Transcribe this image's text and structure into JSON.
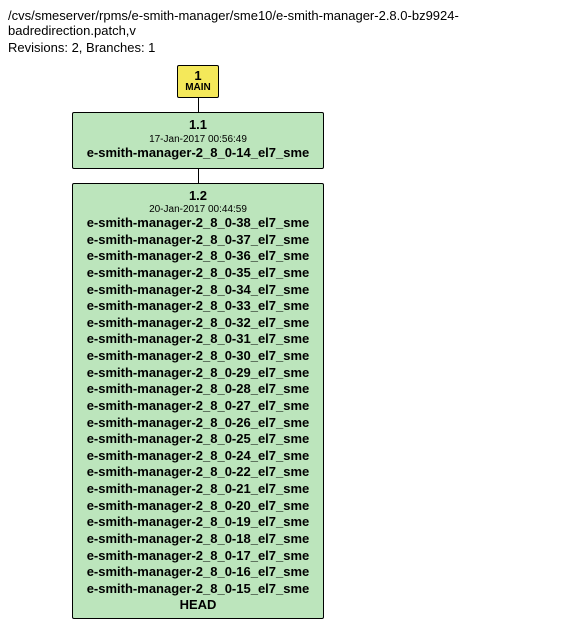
{
  "header": {
    "path": "/cvs/smeserver/rpms/e-smith-manager/sme10/e-smith-manager-2.8.0-bz9924-badredirection.patch,v",
    "revisions_label": "Revisions: 2, Branches: 1"
  },
  "main_node": {
    "number": "1",
    "branch": "MAIN",
    "bg_color": "#f4e85a"
  },
  "rev1": {
    "version": "1.1",
    "date": "17-Jan-2017 00:56:49",
    "tags": [
      "e-smith-manager-2_8_0-14_el7_sme"
    ],
    "bg_color": "#bce5bc"
  },
  "rev2": {
    "version": "1.2",
    "date": "20-Jan-2017 00:44:59",
    "tags": [
      "e-smith-manager-2_8_0-38_el7_sme",
      "e-smith-manager-2_8_0-37_el7_sme",
      "e-smith-manager-2_8_0-36_el7_sme",
      "e-smith-manager-2_8_0-35_el7_sme",
      "e-smith-manager-2_8_0-34_el7_sme",
      "e-smith-manager-2_8_0-33_el7_sme",
      "e-smith-manager-2_8_0-32_el7_sme",
      "e-smith-manager-2_8_0-31_el7_sme",
      "e-smith-manager-2_8_0-30_el7_sme",
      "e-smith-manager-2_8_0-29_el7_sme",
      "e-smith-manager-2_8_0-28_el7_sme",
      "e-smith-manager-2_8_0-27_el7_sme",
      "e-smith-manager-2_8_0-26_el7_sme",
      "e-smith-manager-2_8_0-25_el7_sme",
      "e-smith-manager-2_8_0-24_el7_sme",
      "e-smith-manager-2_8_0-22_el7_sme",
      "e-smith-manager-2_8_0-21_el7_sme",
      "e-smith-manager-2_8_0-20_el7_sme",
      "e-smith-manager-2_8_0-19_el7_sme",
      "e-smith-manager-2_8_0-18_el7_sme",
      "e-smith-manager-2_8_0-17_el7_sme",
      "e-smith-manager-2_8_0-16_el7_sme",
      "e-smith-manager-2_8_0-15_el7_sme"
    ],
    "head_label": "HEAD",
    "bg_color": "#bce5bc"
  },
  "colors": {
    "background": "#ffffff",
    "border": "#000000",
    "text": "#000000"
  }
}
